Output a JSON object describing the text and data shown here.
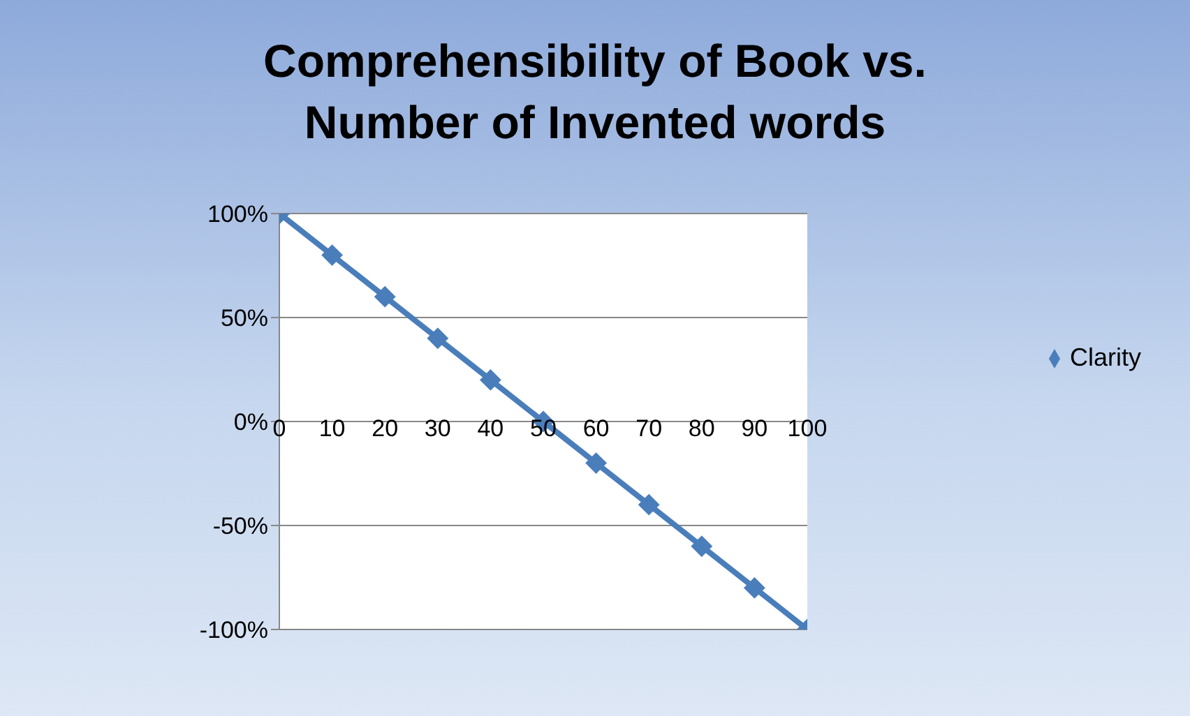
{
  "chart_data": {
    "type": "line",
    "title": "Comprehensibility of Book vs. Number of Invented words",
    "categories": [
      "0",
      "10",
      "20",
      "30",
      "40",
      "50",
      "60",
      "70",
      "80",
      "90",
      "100"
    ],
    "series": [
      {
        "name": "Clarity",
        "color": "#4a7ebb",
        "values": [
          100,
          80,
          60,
          40,
          20,
          0,
          -20,
          -40,
          -60,
          -80,
          -100
        ]
      }
    ],
    "ylim": [
      -100,
      100
    ],
    "yticks": [
      {
        "value": -100,
        "label": "-100%"
      },
      {
        "value": -50,
        "label": "-50%"
      },
      {
        "value": 0,
        "label": "0%"
      },
      {
        "value": 50,
        "label": "50%"
      },
      {
        "value": 100,
        "label": "100%"
      }
    ],
    "grid": "y",
    "legend": "right",
    "marker": "diamond",
    "line_style": "solid"
  }
}
